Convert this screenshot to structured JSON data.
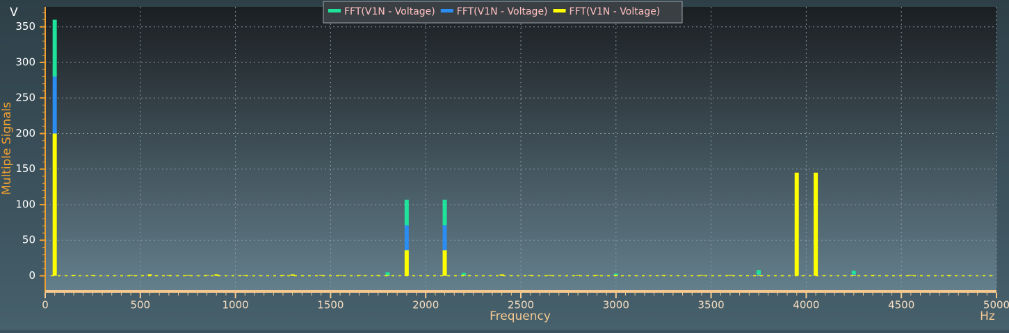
{
  "chart_data": {
    "type": "stacked-bar",
    "y_unit": "V",
    "x_unit": "Hz",
    "ylabel": "Multiple Signals",
    "xlabel": "Frequency",
    "x": [
      50,
      150,
      250,
      450,
      550,
      650,
      750,
      850,
      900,
      1050,
      1250,
      1300,
      1450,
      1550,
      1650,
      1750,
      1800,
      1900,
      2100,
      2200,
      2400,
      2550,
      2650,
      2800,
      2900,
      3000,
      3250,
      3450,
      3600,
      3750,
      3950,
      4050,
      4250,
      4350,
      4550,
      4750
    ],
    "series": [
      {
        "name": "FFT(V1N - Voltage)",
        "color": "#1fe39a",
        "values": [
          80,
          0,
          0,
          0,
          0,
          0,
          0,
          0,
          0,
          0,
          0,
          0,
          0,
          0,
          0,
          0,
          4,
          36,
          36,
          3,
          0,
          0,
          0,
          0,
          0,
          2,
          0,
          0,
          0,
          6,
          0,
          0,
          5,
          0,
          0,
          0
        ]
      },
      {
        "name": "FFT(V1N - Voltage)",
        "color": "#2b8cf2",
        "values": [
          80,
          0,
          0,
          0,
          0,
          0,
          0,
          0,
          0,
          0,
          0,
          0,
          0,
          0,
          0,
          0,
          0,
          35,
          35,
          0,
          0,
          0,
          0,
          0,
          0,
          0,
          0,
          0,
          0,
          1,
          0,
          0,
          1,
          0,
          0,
          0
        ]
      },
      {
        "name": "FFT(V1N - Voltage)",
        "color": "#ffff00",
        "values": [
          200,
          1,
          1,
          1,
          2,
          1,
          1,
          1,
          2,
          1,
          1,
          2,
          1,
          1,
          1,
          1,
          1,
          36,
          36,
          1,
          2,
          1,
          1,
          1,
          1,
          1,
          1,
          1,
          1,
          1,
          145,
          145,
          1,
          1,
          1,
          1
        ]
      }
    ],
    "stack_order": "bottom-up from last series",
    "xlim": [
      0,
      5000
    ],
    "xticks": [
      0,
      500,
      1000,
      1500,
      2000,
      2500,
      3000,
      3500,
      4000,
      4500,
      5000
    ],
    "ylim": [
      -20,
      378
    ],
    "yticks": [
      0,
      50,
      100,
      150,
      200,
      250,
      300,
      350
    ],
    "grid": true,
    "legend": "top"
  }
}
